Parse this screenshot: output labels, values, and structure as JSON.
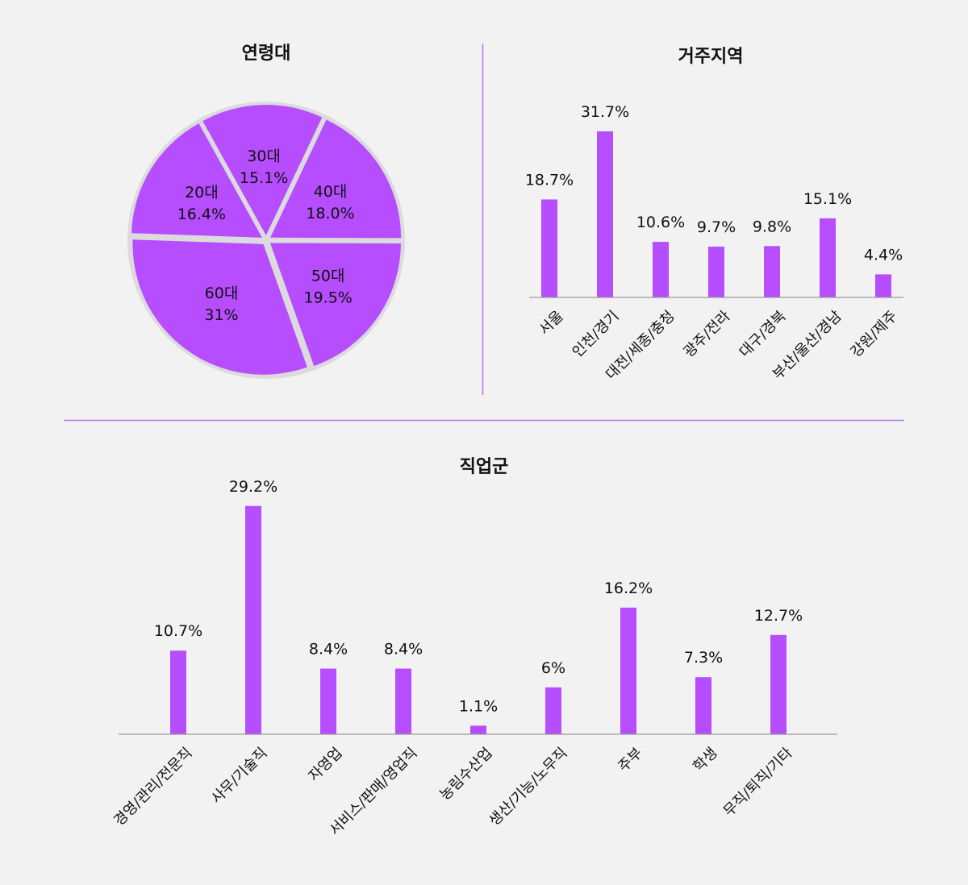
{
  "colors": {
    "background": "#f2f2f2",
    "bar": "#b64dff",
    "pie_fill": "#b64dff",
    "pie_rim": "#dcdadc",
    "divider": "#b971e8",
    "axis": "#999999",
    "text": "#111111"
  },
  "chart_data": [
    {
      "type": "pie",
      "title": "연령대",
      "slices": [
        {
          "label": "20대",
          "value": 16.4,
          "display": "16.4%"
        },
        {
          "label": "30대",
          "value": 15.1,
          "display": "15.1%"
        },
        {
          "label": "40대",
          "value": 18.0,
          "display": "18.0%"
        },
        {
          "label": "50대",
          "value": 19.5,
          "display": "19.5%"
        },
        {
          "label": "60대",
          "value": 31,
          "display": "31%"
        }
      ]
    },
    {
      "type": "bar",
      "title": "거주지역",
      "categories": [
        "서울",
        "인천/경기",
        "대전/세종/충청",
        "광주/전라",
        "대구/경북",
        "부산/울산/경남",
        "강원/제주"
      ],
      "values": [
        18.7,
        31.7,
        10.6,
        9.7,
        9.8,
        15.1,
        4.4
      ],
      "value_labels": [
        "18.7%",
        "31.7%",
        "10.6%",
        "9.7%",
        "9.8%",
        "15.1%",
        "4.4%"
      ],
      "grid": false
    },
    {
      "type": "bar",
      "title": "직업군",
      "categories": [
        "경영/관리/전문직",
        "사무/기술직",
        "자영업",
        "서비스/판매/영업직",
        "농림수산업",
        "생산/기능/노무직",
        "주부",
        "학생",
        "무직/퇴직/기타"
      ],
      "values": [
        10.7,
        29.2,
        8.4,
        8.4,
        1.1,
        6,
        16.2,
        7.3,
        12.7
      ],
      "value_labels": [
        "10.7%",
        "29.2%",
        "8.4%",
        "8.4%",
        "1.1%",
        "6%",
        "16.2%",
        "7.3%",
        "12.7%"
      ],
      "grid": false
    }
  ]
}
